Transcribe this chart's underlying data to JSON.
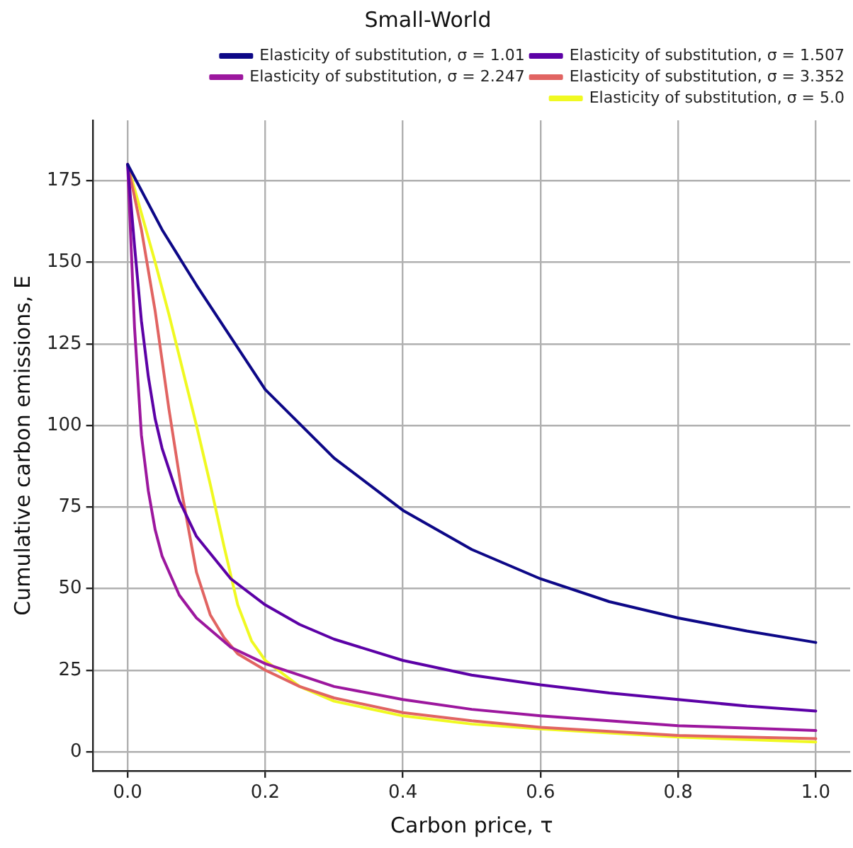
{
  "chart_data": {
    "type": "line",
    "title": "Small-World",
    "xlabel": "Carbon price, τ",
    "ylabel": "Cumulative carbon emissions, E",
    "xlim": [
      -0.05,
      1.05
    ],
    "xticks": [
      {
        "value": 0,
        "label": "0.0"
      },
      0.2,
      0.4,
      0.6,
      0.8,
      {
        "value": 1,
        "label": "1.0"
      }
    ],
    "ylim": [
      -5.8,
      193.5
    ],
    "yticks": [
      0,
      25,
      50,
      75,
      100,
      125,
      150,
      175
    ],
    "grid": true,
    "legend": "top right",
    "marker": "none",
    "line_style": "solid",
    "series": [
      {
        "name": "Elasticity of substitution, σ = 1.01",
        "color": "#0d0887",
        "x": [
          0,
          0.05,
          0.1,
          0.15,
          0.2,
          0.3,
          0.4,
          0.5,
          0.6,
          0.7,
          0.8,
          0.9,
          1.0
        ],
        "values": [
          180,
          160,
          143,
          127,
          111,
          90,
          74,
          62,
          53,
          46,
          41,
          37,
          33.5
        ]
      },
      {
        "name": "Elasticity of substitution, σ = 1.507",
        "color": "#5c01a6",
        "x": [
          0,
          0.01,
          0.02,
          0.03,
          0.04,
          0.05,
          0.075,
          0.1,
          0.15,
          0.2,
          0.25,
          0.3,
          0.4,
          0.5,
          0.6,
          0.7,
          0.8,
          0.9,
          1.0
        ],
        "values": [
          180,
          155,
          132,
          115,
          102,
          93,
          77,
          66,
          53,
          45,
          39,
          34.5,
          28,
          23.5,
          20.5,
          18,
          16,
          14,
          12.5
        ]
      },
      {
        "name": "Elasticity of substitution, σ = 2.247",
        "color": "#9c179e",
        "x": [
          0,
          0.01,
          0.02,
          0.03,
          0.04,
          0.05,
          0.075,
          0.1,
          0.15,
          0.2,
          0.3,
          0.4,
          0.5,
          0.6,
          0.8,
          1.0
        ],
        "values": [
          180,
          130,
          97,
          80,
          68,
          60,
          48,
          41,
          32,
          27,
          20,
          16,
          13,
          11,
          8,
          6.5
        ]
      },
      {
        "name": "Elasticity of substitution, σ = 3.352",
        "color": "#e16462",
        "x": [
          0,
          0.02,
          0.04,
          0.06,
          0.08,
          0.1,
          0.12,
          0.14,
          0.16,
          0.2,
          0.25,
          0.3,
          0.4,
          0.5,
          0.6,
          0.8,
          1.0
        ],
        "values": [
          180,
          160,
          135,
          105,
          78,
          55,
          42,
          35,
          30,
          25,
          20,
          16.5,
          12,
          9.5,
          7.5,
          5,
          4
        ]
      },
      {
        "name": "Elasticity of substitution, σ = 5.0",
        "color": "#f0f921",
        "x": [
          0,
          0.02,
          0.04,
          0.06,
          0.08,
          0.1,
          0.12,
          0.14,
          0.16,
          0.18,
          0.2,
          0.25,
          0.3,
          0.4,
          0.5,
          0.6,
          0.8,
          1.0
        ],
        "values": [
          180,
          165,
          150,
          134,
          117,
          100,
          82,
          63,
          45,
          34,
          28,
          20,
          15.5,
          11,
          8.5,
          7,
          4.5,
          3
        ]
      }
    ]
  }
}
